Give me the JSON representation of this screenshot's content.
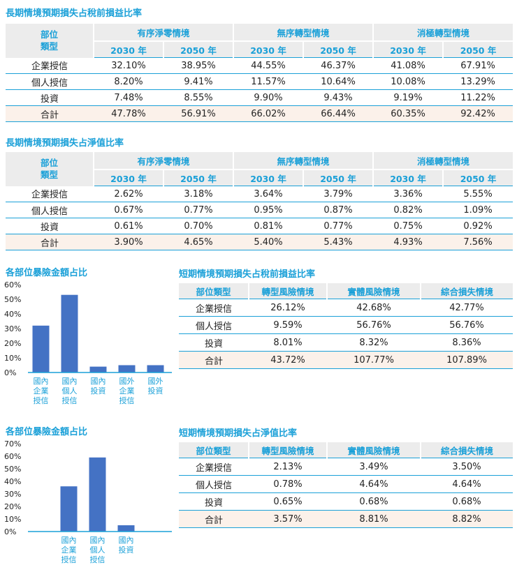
{
  "colors": {
    "accent": "#1aa0d8",
    "bar": "#4472c4",
    "header_bg": "#ececec",
    "total_bg": "#fbf1ea"
  },
  "table1": {
    "title": "長期情境預期損失占稅前損益比率",
    "category_header": "部位\n類型",
    "groups": [
      "有序淨零情境",
      "無序轉型情境",
      "消極轉型情境"
    ],
    "years": [
      "2030 年",
      "2050 年",
      "2030 年",
      "2050 年",
      "2030 年",
      "2050 年"
    ],
    "rows": [
      {
        "label": "企業授信",
        "values": [
          "32.10%",
          "38.95%",
          "44.55%",
          "46.37%",
          "41.08%",
          "67.91%"
        ]
      },
      {
        "label": "個人授信",
        "values": [
          "8.20%",
          "9.41%",
          "11.57%",
          "10.64%",
          "10.08%",
          "13.29%"
        ]
      },
      {
        "label": "投資",
        "values": [
          "7.48%",
          "8.55%",
          "9.90%",
          "9.43%",
          "9.19%",
          "11.22%"
        ]
      },
      {
        "label": "合計",
        "values": [
          "47.78%",
          "56.91%",
          "66.02%",
          "66.44%",
          "60.35%",
          "92.42%"
        ]
      }
    ]
  },
  "table2": {
    "title": "長期情境預期損失占淨值比率",
    "category_header": "部位\n類型",
    "groups": [
      "有序淨零情境",
      "無序轉型情境",
      "消極轉型情境"
    ],
    "years": [
      "2030 年",
      "2050 年",
      "2030 年",
      "2050 年",
      "2030 年",
      "2050 年"
    ],
    "rows": [
      {
        "label": "企業授信",
        "values": [
          "2.62%",
          "3.18%",
          "3.64%",
          "3.79%",
          "3.36%",
          "5.55%"
        ]
      },
      {
        "label": "個人授信",
        "values": [
          "0.67%",
          "0.77%",
          "0.95%",
          "0.87%",
          "0.82%",
          "1.09%"
        ]
      },
      {
        "label": "投資",
        "values": [
          "0.61%",
          "0.70%",
          "0.81%",
          "0.77%",
          "0.75%",
          "0.92%"
        ]
      },
      {
        "label": "合計",
        "values": [
          "3.90%",
          "4.65%",
          "5.40%",
          "5.43%",
          "4.93%",
          "7.56%"
        ]
      }
    ]
  },
  "table3": {
    "title": "短期情境預期損失占稅前損益比率",
    "headers": [
      "部位類型",
      "轉型風險情境",
      "實體風險情境",
      "綜合損失情境"
    ],
    "rows": [
      {
        "label": "企業授信",
        "values": [
          "26.12%",
          "42.68%",
          "42.77%"
        ]
      },
      {
        "label": "個人授信",
        "values": [
          "9.59%",
          "56.76%",
          "56.76%"
        ]
      },
      {
        "label": "投資",
        "values": [
          "8.01%",
          "8.32%",
          "8.36%"
        ]
      },
      {
        "label": "合計",
        "values": [
          "43.72%",
          "107.77%",
          "107.89%"
        ]
      }
    ]
  },
  "table4": {
    "title": "短期情境預期損失占淨值比率",
    "headers": [
      "部位類型",
      "轉型風險情境",
      "實體風險情境",
      "綜合損失情境"
    ],
    "rows": [
      {
        "label": "企業授信",
        "values": [
          "2.13%",
          "3.49%",
          "3.50%"
        ]
      },
      {
        "label": "個人授信",
        "values": [
          "0.78%",
          "4.64%",
          "4.64%"
        ]
      },
      {
        "label": "投資",
        "values": [
          "0.65%",
          "0.68%",
          "0.68%"
        ]
      },
      {
        "label": "合計",
        "values": [
          "3.57%",
          "8.81%",
          "8.82%"
        ]
      }
    ]
  },
  "chart_data": [
    {
      "type": "bar",
      "title": "各部位暴險金額占比",
      "categories": [
        "國內\n企業\n授信",
        "國內\n個人\n授信",
        "國內\n投資",
        "國外\n企業\n授信",
        "國外\n投資"
      ],
      "values": [
        32,
        53,
        4,
        5,
        5
      ],
      "ylim": [
        0,
        60
      ],
      "yticks": [
        "0%",
        "10%",
        "20%",
        "30%",
        "40%",
        "50%",
        "60%"
      ],
      "grid": false
    },
    {
      "type": "bar",
      "title": "各部位暴險金額占比",
      "categories": [
        "國內\n企業\n授信",
        "國內\n個人\n授信",
        "國內\n投資"
      ],
      "values": [
        36,
        59,
        5
      ],
      "ylim": [
        0,
        70
      ],
      "yticks": [
        "0%",
        "10%",
        "20%",
        "30%",
        "40%",
        "50%",
        "60%",
        "70%"
      ],
      "grid": false
    }
  ]
}
